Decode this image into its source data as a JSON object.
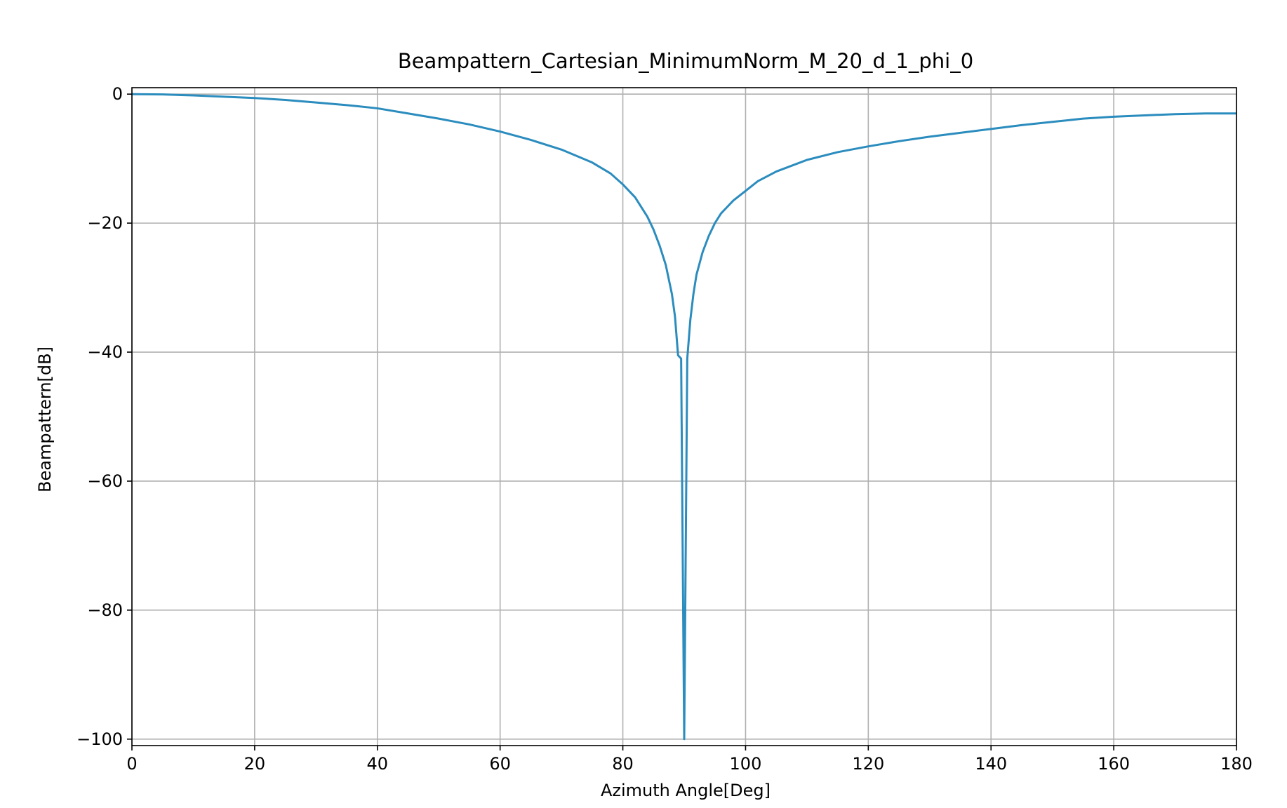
{
  "chart_data": {
    "type": "line",
    "title": "Beampattern_Cartesian_MinimumNorm_M_20_d_1_phi_0",
    "xlabel": "Azimuth Angle[Deg]",
    "ylabel": "Beampattern[dB]",
    "xlim": [
      0,
      180
    ],
    "ylim": [
      -101,
      1
    ],
    "xticks": [
      0,
      20,
      40,
      60,
      80,
      100,
      120,
      140,
      160,
      180
    ],
    "xtick_labels": [
      "0",
      "20",
      "40",
      "60",
      "80",
      "100",
      "120",
      "140",
      "160",
      "180"
    ],
    "yticks": [
      0,
      -20,
      -40,
      -60,
      -80,
      -100
    ],
    "ytick_labels": [
      "0",
      "−20",
      "−40",
      "−60",
      "−80",
      "−100"
    ],
    "grid": true,
    "series": [
      {
        "color": "#2b8cbe",
        "x": [
          0,
          5,
          10,
          15,
          20,
          25,
          30,
          35,
          40,
          45,
          50,
          55,
          60,
          65,
          70,
          75,
          78,
          80,
          82,
          84,
          85,
          86,
          87,
          88,
          88.5,
          89,
          89.5,
          90,
          90.5,
          91,
          91.5,
          92,
          93,
          94,
          95,
          96,
          97,
          98,
          100,
          102,
          105,
          110,
          115,
          120,
          125,
          130,
          135,
          140,
          145,
          150,
          155,
          160,
          165,
          170,
          175,
          180
        ],
        "y": [
          0,
          -0.05,
          -0.2,
          -0.4,
          -0.6,
          -0.9,
          -1.3,
          -1.7,
          -2.2,
          -3.0,
          -3.8,
          -4.7,
          -5.8,
          -7.1,
          -8.6,
          -10.6,
          -12.3,
          -14.0,
          -16.0,
          -19.0,
          -21.0,
          -23.5,
          -26.5,
          -31.0,
          -34.5,
          -40.5,
          -41.0,
          -100,
          -41.0,
          -35.0,
          -31.0,
          -28.0,
          -24.5,
          -22.0,
          -20.0,
          -18.5,
          -17.5,
          -16.5,
          -15.0,
          -13.5,
          -12.0,
          -10.2,
          -9.0,
          -8.1,
          -7.3,
          -6.6,
          -6.0,
          -5.4,
          -4.8,
          -4.3,
          -3.8,
          -3.5,
          -3.3,
          -3.1,
          -3.0,
          -3.0
        ]
      }
    ]
  }
}
